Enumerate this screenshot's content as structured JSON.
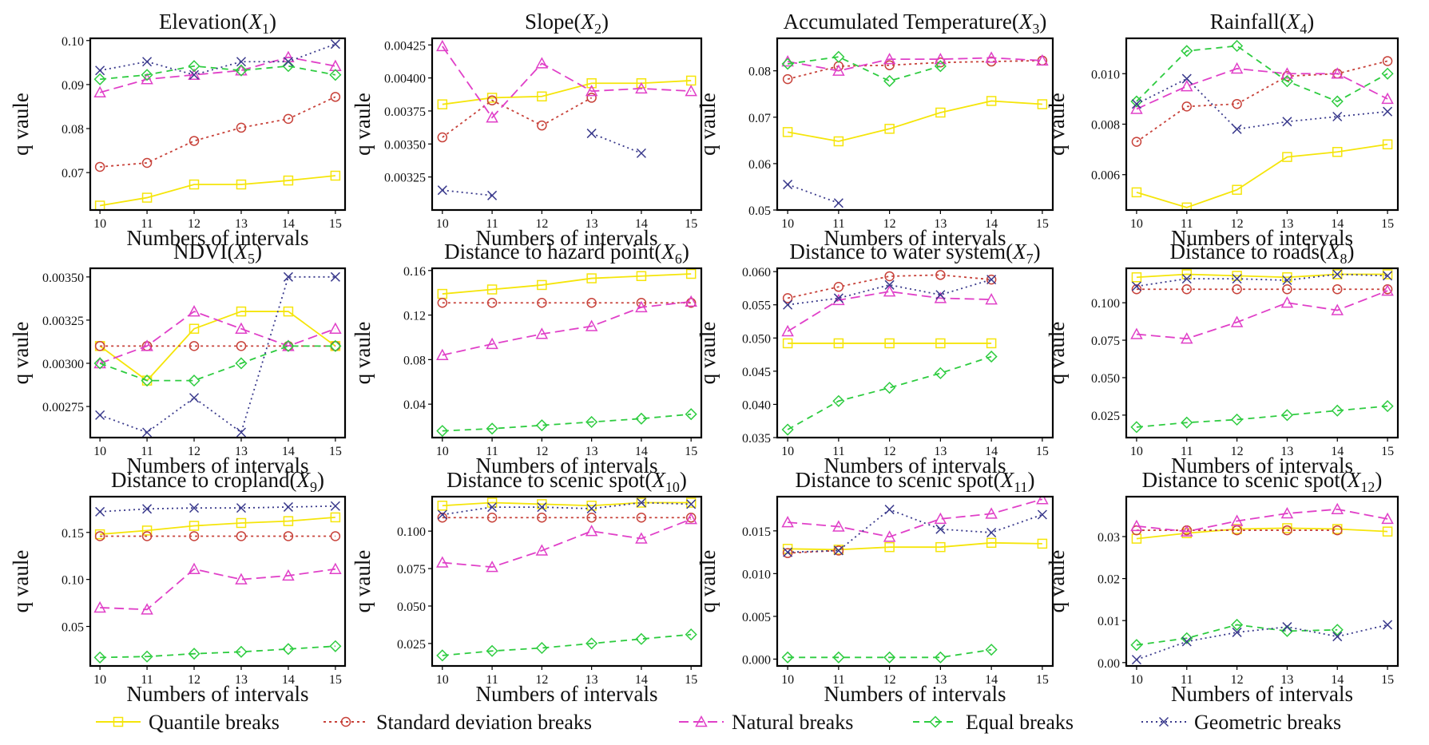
{
  "x_values": [
    10,
    11,
    12,
    13,
    14,
    15
  ],
  "legend": [
    {
      "key": "quantile",
      "label": "Quantile breaks",
      "color": "#f5e50a",
      "dash": "",
      "marker": "square"
    },
    {
      "key": "stddev",
      "label": "Standard deviation breaks",
      "color": "#c8423a",
      "dash": "3,4",
      "marker": "circle"
    },
    {
      "key": "natural",
      "label": "Natural breaks",
      "color": "#e040c8",
      "dash": "12,6",
      "marker": "triangle"
    },
    {
      "key": "equal",
      "label": "Equal breaks",
      "color": "#2ecc40",
      "dash": "8,6",
      "marker": "diamond"
    },
    {
      "key": "geometric",
      "label": "Geometric breaks",
      "color": "#3a3a8c",
      "dash": "2,4",
      "marker": "x"
    }
  ],
  "chart_data": [
    {
      "type": "line",
      "title": "Elevation",
      "subscript": "1",
      "xlabel": "Numbers of intervals",
      "ylabel": "q vaule",
      "ylim": [
        0.0615,
        0.1005
      ],
      "yticks": [
        0.07,
        0.08,
        0.09,
        0.1
      ],
      "ytick_labels": [
        "0.07",
        "0.08",
        "0.09",
        "0.10"
      ],
      "series": [
        {
          "key": "quantile",
          "values": [
            0.0625,
            0.0643,
            0.0673,
            0.0673,
            0.0682,
            0.0693
          ]
        },
        {
          "key": "stddev",
          "values": [
            0.0713,
            0.0722,
            0.0772,
            0.0802,
            0.0822,
            0.0872
          ]
        },
        {
          "key": "natural",
          "values": [
            0.0882,
            0.0912,
            0.0922,
            0.0932,
            0.0962,
            0.0942
          ]
        },
        {
          "key": "equal",
          "values": [
            0.0912,
            0.0922,
            0.0942,
            0.0932,
            0.0942,
            0.0922
          ]
        },
        {
          "key": "geometric",
          "values": [
            0.0932,
            0.0952,
            0.0922,
            0.0952,
            0.0952,
            0.0992
          ]
        }
      ]
    },
    {
      "type": "line",
      "title": "Slope",
      "subscript": "2",
      "xlabel": "Numbers of intervals",
      "ylabel": "q vaule",
      "ylim": [
        0.003,
        0.0043
      ],
      "yticks": [
        0.00325,
        0.0035,
        0.00375,
        0.004,
        0.00425
      ],
      "ytick_labels": [
        "0.00325",
        "0.00350",
        "0.00375",
        "0.00400",
        "0.00425"
      ],
      "series": [
        {
          "key": "quantile",
          "values": [
            0.0038,
            0.00385,
            0.00386,
            0.00396,
            0.00396,
            0.00398
          ]
        },
        {
          "key": "stddev",
          "values": [
            0.00355,
            0.00383,
            0.00364,
            0.00385,
            null,
            null
          ]
        },
        {
          "key": "natural",
          "values": [
            0.00424,
            0.0037,
            0.00411,
            0.0039,
            0.00392,
            0.0039
          ]
        },
        {
          "key": "equal",
          "values": [
            null,
            null,
            null,
            null,
            null,
            null
          ]
        },
        {
          "key": "geometric",
          "values": [
            0.00315,
            0.00311,
            null,
            0.00358,
            0.00343,
            null
          ]
        }
      ]
    },
    {
      "type": "line",
      "title": "Accumulated Temperature",
      "subscript": "3",
      "xlabel": "Numbers of intervals",
      "ylabel": "q vaule",
      "ylim": [
        0.05,
        0.087
      ],
      "yticks": [
        0.05,
        0.06,
        0.07,
        0.08
      ],
      "ytick_labels": [
        "0.05",
        "0.06",
        "0.07",
        "0.08"
      ],
      "series": [
        {
          "key": "quantile",
          "values": [
            0.0668,
            0.0648,
            0.0675,
            0.071,
            0.0735,
            0.0728
          ]
        },
        {
          "key": "stddev",
          "values": [
            0.0782,
            0.081,
            0.0812,
            0.0818,
            0.082,
            0.0822
          ]
        },
        {
          "key": "natural",
          "values": [
            0.082,
            0.08,
            0.0825,
            0.0825,
            0.0828,
            0.0822
          ]
        },
        {
          "key": "equal",
          "values": [
            0.0815,
            0.083,
            0.0778,
            0.081,
            null,
            null
          ]
        },
        {
          "key": "geometric",
          "values": [
            0.0555,
            0.0515,
            null,
            null,
            null,
            null
          ]
        }
      ]
    },
    {
      "type": "line",
      "title": "Rainfall",
      "subscript": "4",
      "xlabel": "Numbers of intervals",
      "ylabel": "q vaule",
      "ylim": [
        0.0046,
        0.0114
      ],
      "yticks": [
        0.006,
        0.008,
        0.01
      ],
      "ytick_labels": [
        "0.006",
        "0.008",
        "0.010"
      ],
      "series": [
        {
          "key": "quantile",
          "values": [
            0.0053,
            0.0047,
            0.0054,
            0.0067,
            0.0069,
            0.0072
          ]
        },
        {
          "key": "stddev",
          "values": [
            0.0073,
            0.0087,
            0.0088,
            0.0099,
            0.01,
            0.0105
          ]
        },
        {
          "key": "natural",
          "values": [
            0.0086,
            0.0095,
            0.0102,
            0.01,
            0.01,
            0.009
          ]
        },
        {
          "key": "equal",
          "values": [
            0.0089,
            0.0109,
            0.0111,
            0.0097,
            0.0089,
            0.01
          ]
        },
        {
          "key": "geometric",
          "values": [
            0.0088,
            0.0098,
            0.0078,
            0.0081,
            0.0083,
            0.0085
          ]
        }
      ]
    },
    {
      "type": "line",
      "title": "NDVI",
      "subscript": "5",
      "xlabel": "Numbers of intervals",
      "ylabel": "q vaule",
      "ylim": [
        0.00257,
        0.00355
      ],
      "yticks": [
        0.00275,
        0.003,
        0.00325,
        0.0035
      ],
      "ytick_labels": [
        "0.00275",
        "0.00300",
        "0.00325",
        "0.00350"
      ],
      "series": [
        {
          "key": "quantile",
          "values": [
            0.0031,
            0.0029,
            0.0032,
            0.0033,
            0.0033,
            0.0031
          ]
        },
        {
          "key": "stddev",
          "values": [
            0.0031,
            0.0031,
            0.0031,
            0.0031,
            0.0031,
            0.0031
          ]
        },
        {
          "key": "natural",
          "values": [
            0.003,
            0.0031,
            0.0033,
            0.0032,
            0.0031,
            0.0032
          ]
        },
        {
          "key": "equal",
          "values": [
            0.003,
            0.0029,
            0.0029,
            0.003,
            0.0031,
            0.0031
          ]
        },
        {
          "key": "geometric",
          "values": [
            0.0027,
            0.0026,
            0.0028,
            0.0026,
            0.0035,
            0.0035
          ]
        }
      ]
    },
    {
      "type": "line",
      "title": "Distance to hazard point",
      "subscript": "6",
      "xlabel": "Numbers of intervals",
      "ylabel": "q vaule",
      "ylim": [
        0.01,
        0.162
      ],
      "yticks": [
        0.04,
        0.08,
        0.12,
        0.16
      ],
      "ytick_labels": [
        "0.04",
        "0.08",
        "0.12",
        "0.16"
      ],
      "series": [
        {
          "key": "quantile",
          "values": [
            0.139,
            0.143,
            0.147,
            0.153,
            0.155,
            0.157
          ]
        },
        {
          "key": "stddev",
          "values": [
            0.131,
            0.131,
            0.131,
            0.131,
            0.131,
            0.131
          ]
        },
        {
          "key": "natural",
          "values": [
            0.084,
            0.094,
            0.103,
            0.11,
            0.127,
            0.132
          ]
        },
        {
          "key": "equal",
          "values": [
            0.016,
            0.018,
            0.021,
            0.024,
            0.027,
            0.031
          ]
        },
        {
          "key": "geometric",
          "values": [
            null,
            null,
            null,
            null,
            null,
            null
          ]
        }
      ]
    },
    {
      "type": "line",
      "title": "Distance to water system",
      "subscript": "7",
      "xlabel": "Numbers of intervals",
      "ylabel": "q vaule",
      "ylim": [
        0.035,
        0.0605
      ],
      "yticks": [
        0.035,
        0.04,
        0.045,
        0.05,
        0.055,
        0.06
      ],
      "ytick_labels": [
        "0.035",
        "0.040",
        "0.045",
        "0.050",
        "0.055",
        "0.060"
      ],
      "series": [
        {
          "key": "quantile",
          "values": [
            0.0492,
            0.0492,
            0.0492,
            0.0492,
            0.0492,
            null
          ]
        },
        {
          "key": "stddev",
          "values": [
            0.056,
            0.0577,
            0.0593,
            0.0595,
            0.0588,
            null
          ]
        },
        {
          "key": "natural",
          "values": [
            0.051,
            0.0557,
            0.057,
            0.056,
            0.0558,
            null
          ]
        },
        {
          "key": "equal",
          "values": [
            0.0362,
            0.0405,
            0.0425,
            0.0447,
            0.0472,
            null
          ]
        },
        {
          "key": "geometric",
          "values": [
            0.055,
            0.056,
            0.058,
            0.0565,
            0.0588,
            null
          ]
        }
      ]
    },
    {
      "type": "line",
      "title": "Distance to roads",
      "subscript": "8",
      "xlabel": "Numbers of intervals",
      "ylabel": "q vaule",
      "ylim": [
        0.01,
        0.123
      ],
      "yticks": [
        0.025,
        0.05,
        0.075,
        0.1
      ],
      "ytick_labels": [
        "0.025",
        "0.050",
        "0.075",
        "0.100"
      ],
      "series": [
        {
          "key": "quantile",
          "values": [
            0.117,
            0.119,
            0.118,
            0.117,
            0.119,
            0.119
          ]
        },
        {
          "key": "stddev",
          "values": [
            0.109,
            0.109,
            0.109,
            0.109,
            0.109,
            0.109
          ]
        },
        {
          "key": "natural",
          "values": [
            0.079,
            0.076,
            0.087,
            0.1,
            0.095,
            0.108
          ]
        },
        {
          "key": "equal",
          "values": [
            0.017,
            0.02,
            0.022,
            0.025,
            0.028,
            0.031
          ]
        },
        {
          "key": "geometric",
          "values": [
            0.111,
            0.116,
            0.116,
            0.115,
            0.119,
            0.118
          ]
        }
      ]
    },
    {
      "type": "line",
      "title": "Distance to cropland",
      "subscript": "9",
      "xlabel": "Numbers of intervals",
      "ylabel": "q vaule",
      "ylim": [
        0.008,
        0.188
      ],
      "yticks": [
        0.05,
        0.1,
        0.15
      ],
      "ytick_labels": [
        "0.05",
        "0.10",
        "0.15"
      ],
      "series": [
        {
          "key": "quantile",
          "values": [
            0.148,
            0.152,
            0.157,
            0.16,
            0.162,
            0.166
          ]
        },
        {
          "key": "stddev",
          "values": [
            0.146,
            0.146,
            0.146,
            0.146,
            0.146,
            0.146
          ]
        },
        {
          "key": "natural",
          "values": [
            0.07,
            0.068,
            0.111,
            0.1,
            0.104,
            0.111
          ]
        },
        {
          "key": "equal",
          "values": [
            0.017,
            0.018,
            0.021,
            0.023,
            0.026,
            0.029
          ]
        },
        {
          "key": "geometric",
          "values": [
            0.172,
            0.175,
            0.176,
            0.176,
            0.177,
            0.178
          ]
        }
      ]
    },
    {
      "type": "line",
      "title": "Distance to scenic spot",
      "subscript": "10",
      "xlabel": "Numbers of intervals",
      "ylabel": "q vaule",
      "ylim": [
        0.01,
        0.123
      ],
      "yticks": [
        0.025,
        0.05,
        0.075,
        0.1
      ],
      "ytick_labels": [
        "0.025",
        "0.050",
        "0.075",
        "0.100"
      ],
      "series": [
        {
          "key": "quantile",
          "values": [
            0.117,
            0.119,
            0.118,
            0.117,
            0.119,
            0.119
          ]
        },
        {
          "key": "stddev",
          "values": [
            0.109,
            0.109,
            0.109,
            0.109,
            0.109,
            0.109
          ]
        },
        {
          "key": "natural",
          "values": [
            0.079,
            0.076,
            0.087,
            0.1,
            0.095,
            0.108
          ]
        },
        {
          "key": "equal",
          "values": [
            0.017,
            0.02,
            0.022,
            0.025,
            0.028,
            0.031
          ]
        },
        {
          "key": "geometric",
          "values": [
            0.111,
            0.116,
            0.116,
            0.115,
            0.119,
            0.118
          ]
        }
      ]
    },
    {
      "type": "line",
      "title": "Distance to scenic spot",
      "subscript": "11",
      "xlabel": "Numbers of intervals",
      "ylabel": "q vaule",
      "ylim": [
        -0.0008,
        0.019
      ],
      "yticks": [
        0.0,
        0.005,
        0.01,
        0.015
      ],
      "ytick_labels": [
        "0.000",
        "0.005",
        "0.010",
        "0.015"
      ],
      "series": [
        {
          "key": "quantile",
          "values": [
            0.0129,
            0.0128,
            0.0131,
            0.0131,
            0.0136,
            0.0135
          ]
        },
        {
          "key": "stddev",
          "values": [
            0.0124,
            0.0127,
            null,
            null,
            null,
            null
          ]
        },
        {
          "key": "natural",
          "values": [
            0.016,
            0.0155,
            0.0143,
            0.0164,
            0.017,
            0.0187
          ]
        },
        {
          "key": "equal",
          "values": [
            0.0002,
            0.0002,
            0.0002,
            0.0002,
            0.0011,
            null
          ]
        },
        {
          "key": "geometric",
          "values": [
            0.0125,
            0.0127,
            0.0175,
            0.0152,
            0.0148,
            0.0169
          ]
        }
      ]
    },
    {
      "type": "line",
      "title": "Distance to scenic spot",
      "subscript": "12",
      "xlabel": "Numbers of intervals",
      "ylabel": "q vaule",
      "ylim": [
        -0.0008,
        0.0395
      ],
      "yticks": [
        0.0,
        0.01,
        0.02,
        0.03
      ],
      "ytick_labels": [
        "0.00",
        "0.01",
        "0.02",
        "0.03"
      ],
      "series": [
        {
          "key": "quantile",
          "values": [
            0.0295,
            0.0308,
            0.0318,
            0.032,
            0.0318,
            0.0312
          ]
        },
        {
          "key": "stddev",
          "values": [
            0.0315,
            0.0315,
            0.0315,
            0.0315,
            0.0315,
            null
          ]
        },
        {
          "key": "natural",
          "values": [
            0.0325,
            0.0312,
            0.0337,
            0.0355,
            0.0365,
            0.0342
          ]
        },
        {
          "key": "equal",
          "values": [
            0.0042,
            0.0058,
            0.009,
            0.0075,
            0.0078,
            null
          ]
        },
        {
          "key": "geometric",
          "values": [
            0.0007,
            0.005,
            0.0072,
            0.0085,
            0.0062,
            0.009
          ]
        }
      ]
    }
  ]
}
